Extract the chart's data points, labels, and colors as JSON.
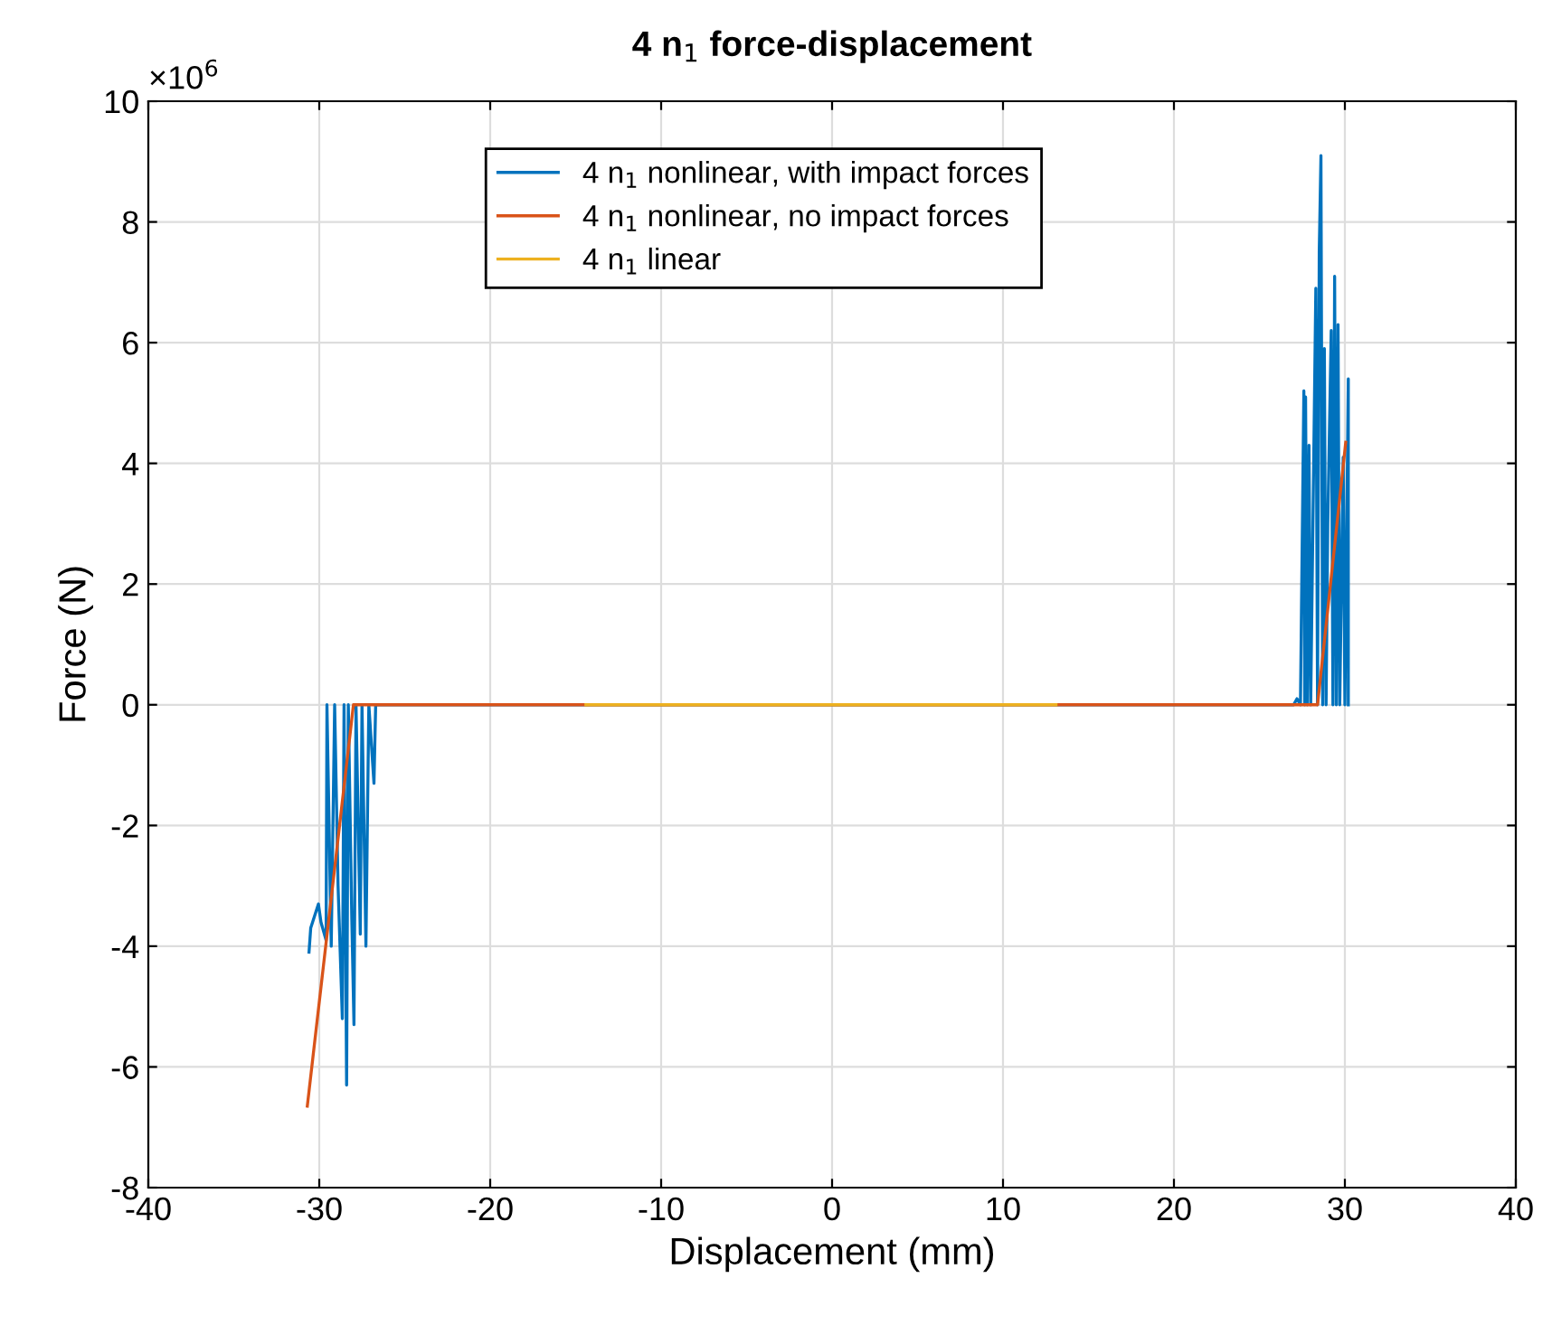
{
  "chart_data": {
    "type": "line",
    "title": "4 n$_{1}$ force-displacement",
    "xlabel": "Displacement (mm)",
    "ylabel": "Force (N)",
    "annotations": [
      "×10$^{6}$"
    ],
    "series": [
      {
        "name": "4 n$_{1}$ nonlinear, with impact forces",
        "color": "#0072bd",
        "x": [
          -30.6,
          -30.5,
          -30.05,
          -29.9,
          -29.6,
          -29.55,
          -29.3,
          -29.1,
          -28.9,
          -28.65,
          -28.55,
          -28.4,
          -28.3,
          -28.1,
          -27.97,
          -27.85,
          -27.6,
          -27.5,
          -27.27,
          -27.1,
          -26.8,
          -26.7,
          27.0,
          27.2,
          27.4,
          27.6,
          27.65,
          27.7,
          27.8,
          27.9,
          28.0,
          28.3,
          28.4,
          28.5,
          28.6,
          28.7,
          28.8,
          28.9,
          29.0,
          29.2,
          29.3,
          29.4,
          29.5,
          29.6,
          29.7,
          29.9,
          30.0,
          30.2,
          30.2
        ],
        "values": [
          -4.1,
          -3.7,
          -3.3,
          -3.6,
          -3.9,
          0,
          -4.0,
          0,
          -3.0,
          -5.2,
          0,
          -6.3,
          0,
          -3.5,
          -5.3,
          0,
          -3.8,
          0,
          -4.0,
          0,
          -1.3,
          0,
          0,
          0.1,
          0,
          5.2,
          0,
          5.1,
          0,
          4.3,
          0,
          6.9,
          0,
          7.5,
          9.1,
          0,
          5.9,
          0,
          3.0,
          6.2,
          0,
          7.1,
          0,
          6.3,
          0,
          4.1,
          0,
          5.4,
          0
        ]
      },
      {
        "name": "4 n$_{1}$ nonlinear, no impact forces",
        "color": "#d95319",
        "x": [
          -30.7,
          -28.0,
          28.4,
          30.05
        ],
        "values": [
          -6.65,
          0,
          0,
          4.35
        ]
      },
      {
        "name": "4 n$_{1}$ linear",
        "color": "#edb120",
        "x": [
          -14.4,
          13.1
        ],
        "values": [
          0,
          0
        ]
      }
    ],
    "xlim": [
      -40,
      40
    ],
    "xticks": [
      -40,
      -30,
      -20,
      -10,
      0,
      10,
      20,
      30,
      40
    ],
    "ylim": [
      -8,
      10
    ],
    "yticks": [
      -8,
      -6,
      -4,
      -2,
      0,
      2,
      4,
      6,
      8,
      10
    ],
    "grid": true,
    "legend": "top",
    "marker": "none",
    "line_style": "solid"
  }
}
